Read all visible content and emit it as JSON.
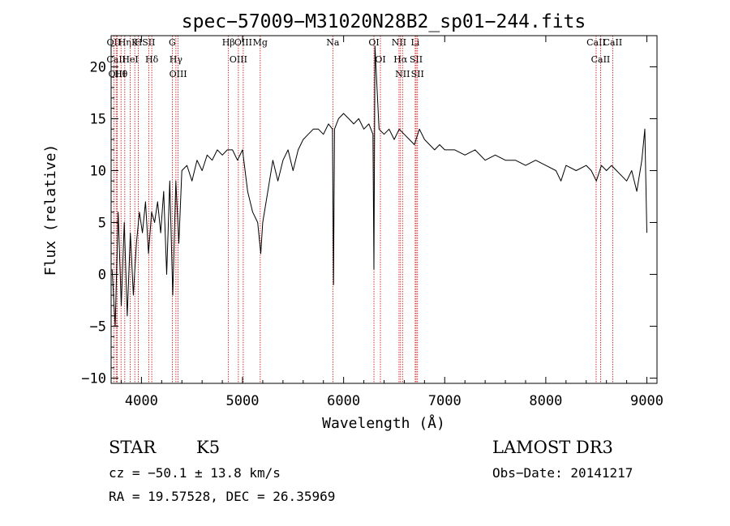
{
  "chart_data": {
    "type": "line",
    "title": "spec−57009−M31020N28B2_sp01−244.fits",
    "xlabel": "Wavelength (Å)",
    "ylabel": "Flux (relative)",
    "xlim": [
      3700,
      9100
    ],
    "ylim": [
      -10.5,
      23
    ],
    "xticks": [
      4000,
      5000,
      6000,
      7000,
      8000,
      9000
    ],
    "xtick_labels": [
      "4000",
      "5000",
      "6000",
      "7000",
      "8000",
      "9000"
    ],
    "yticks": [
      -10,
      -5,
      0,
      5,
      10,
      15,
      20
    ],
    "ytick_labels": [
      "−10",
      "−5",
      "0",
      "5",
      "10",
      "15",
      "20"
    ],
    "line_color": "#000000",
    "marker_color": "#cc0000",
    "series": [
      {
        "name": "spectrum",
        "x": [
          3710,
          3740,
          3770,
          3800,
          3830,
          3860,
          3890,
          3920,
          3950,
          3980,
          4010,
          4040,
          4070,
          4100,
          4130,
          4160,
          4190,
          4220,
          4250,
          4280,
          4310,
          4340,
          4370,
          4400,
          4450,
          4500,
          4550,
          4600,
          4650,
          4700,
          4750,
          4800,
          4850,
          4900,
          4950,
          5000,
          5050,
          5100,
          5150,
          5180,
          5200,
          5250,
          5300,
          5350,
          5400,
          5450,
          5500,
          5550,
          5600,
          5650,
          5700,
          5750,
          5800,
          5850,
          5890,
          5900,
          5910,
          5950,
          6000,
          6050,
          6100,
          6150,
          6200,
          6250,
          6290,
          6300,
          6310,
          6350,
          6400,
          6450,
          6500,
          6550,
          6600,
          6650,
          6700,
          6750,
          6800,
          6850,
          6900,
          6950,
          7000,
          7100,
          7200,
          7300,
          7400,
          7500,
          7600,
          7700,
          7800,
          7900,
          8000,
          8100,
          8150,
          8200,
          8300,
          8400,
          8450,
          8500,
          8550,
          8600,
          8650,
          8700,
          8800,
          8850,
          8900,
          8950,
          8980,
          9000
        ],
        "y": [
          0.5,
          -5,
          6,
          -3,
          5,
          -4,
          4,
          -2,
          3,
          6,
          4,
          7,
          2,
          6,
          5,
          7,
          4,
          8,
          0,
          9,
          -2,
          9,
          3,
          10,
          10.5,
          9,
          11,
          10,
          11.5,
          11,
          12,
          11.5,
          12,
          12,
          11,
          12,
          8,
          6,
          5,
          2,
          5,
          8,
          11,
          9,
          11,
          12,
          10,
          12,
          13,
          13.5,
          14,
          14,
          13.5,
          14.5,
          14,
          -1,
          14,
          15,
          15.5,
          15,
          14.5,
          15,
          14,
          14.5,
          13.5,
          0.5,
          22,
          14,
          13.5,
          14,
          13,
          14,
          13.5,
          13,
          12.5,
          14,
          13,
          12.5,
          12,
          12.5,
          12,
          12,
          11.5,
          12,
          11,
          11.5,
          11,
          11,
          10.5,
          11,
          10.5,
          10,
          9,
          10.5,
          10,
          10.5,
          10,
          9,
          10.5,
          10,
          10.5,
          10,
          9,
          10,
          8,
          11,
          14,
          4
        ]
      }
    ],
    "line_markers": [
      {
        "label": "Hθ",
        "wavelength": 3798
      },
      {
        "label": "OII",
        "wavelength": 3727
      },
      {
        "label": "CaII",
        "wavelength": 3750
      },
      {
        "label": "OIII",
        "wavelength": 3760
      },
      {
        "label": "K",
        "wavelength": 3934
      },
      {
        "label": "Hη",
        "wavelength": 3835
      },
      {
        "label": "HeI",
        "wavelength": 3889
      },
      {
        "label": "H",
        "wavelength": 3969
      },
      {
        "label": "SII",
        "wavelength": 4072
      },
      {
        "label": "Hδ",
        "wavelength": 4102
      },
      {
        "label": "G",
        "wavelength": 4305
      },
      {
        "label": "Hγ",
        "wavelength": 4341
      },
      {
        "label": "OIII",
        "wavelength": 4363
      },
      {
        "label": "Hβ",
        "wavelength": 4861
      },
      {
        "label": "OIII",
        "wavelength": 4959
      },
      {
        "label": "OIII",
        "wavelength": 5007
      },
      {
        "label": "Mg",
        "wavelength": 5175
      },
      {
        "label": "Na",
        "wavelength": 5893
      },
      {
        "label": "OI",
        "wavelength": 6300
      },
      {
        "label": "OI",
        "wavelength": 6364
      },
      {
        "label": "NII",
        "wavelength": 6548
      },
      {
        "label": "Hα",
        "wavelength": 6563
      },
      {
        "label": "NII",
        "wavelength": 6583
      },
      {
        "label": "Li",
        "wavelength": 6708
      },
      {
        "label": "SII",
        "wavelength": 6717
      },
      {
        "label": "SII",
        "wavelength": 6731
      },
      {
        "label": "CaII",
        "wavelength": 8498
      },
      {
        "label": "CaII",
        "wavelength": 8542
      },
      {
        "label": "CaII",
        "wavelength": 8662
      }
    ]
  },
  "info": {
    "class": "STAR",
    "subclass": "K5",
    "survey": "LAMOST DR3",
    "cz": "cz = −50.1 ± 13.8 km/s",
    "obs_date": "Obs−Date: 20141217",
    "coords": "RA =  19.57528, DEC =  26.35969"
  }
}
